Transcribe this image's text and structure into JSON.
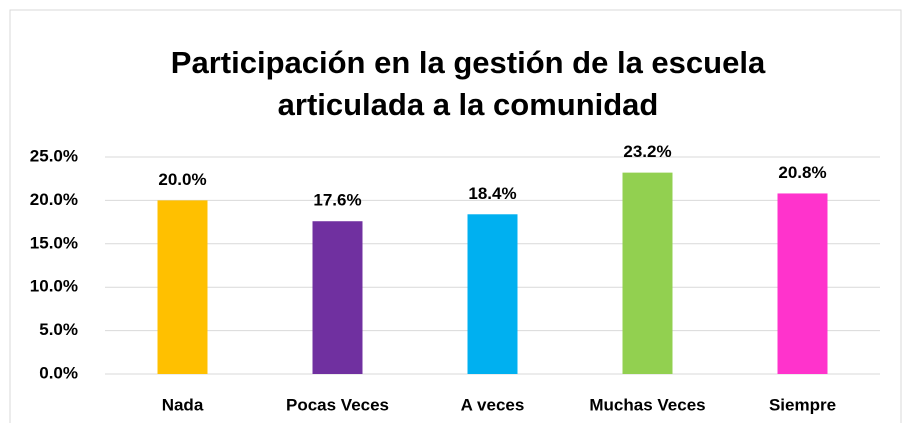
{
  "chart_data": {
    "type": "bar",
    "title": [
      "Participación en la gestión de la escuela",
      "articulada a la comunidad"
    ],
    "categories": [
      "Nada",
      "Pocas Veces",
      "A veces",
      "Muchas Veces",
      "Siempre"
    ],
    "values": [
      20.0,
      17.6,
      18.4,
      23.2,
      20.8
    ],
    "value_labels": [
      "20.0%",
      "17.6%",
      "18.4%",
      "23.2%",
      "20.8%"
    ],
    "colors": [
      "#FFC000",
      "#7030A0",
      "#00B0F0",
      "#92D050",
      "#FF33CC"
    ],
    "ylim": [
      0,
      25
    ],
    "yticks": [
      {
        "value": 0,
        "label": "0.0%"
      },
      {
        "value": 5,
        "label": "5.0%"
      },
      {
        "value": 10,
        "label": "10.0%"
      },
      {
        "value": 15,
        "label": "15.0%"
      },
      {
        "value": 20,
        "label": "20.0%"
      },
      {
        "value": 25,
        "label": "25.0%"
      }
    ],
    "grid": true
  }
}
